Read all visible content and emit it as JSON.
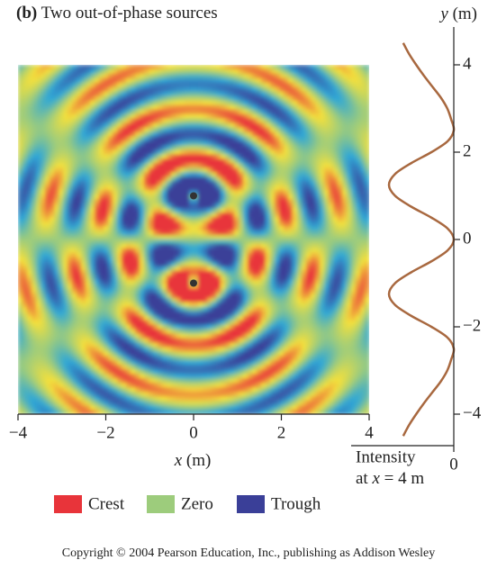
{
  "chart_data": {
    "type": "heatmap",
    "panel": "(b)",
    "title": "Two out-of-phase sources",
    "xlabel": [
      "x",
      "(m)"
    ],
    "ylabel": [
      "y",
      "(m)"
    ],
    "xlim": [
      -4,
      4
    ],
    "ylim": [
      -4,
      4
    ],
    "xticks": [
      {
        "value": -4,
        "label": "−4"
      },
      {
        "value": -2,
        "label": "−2"
      },
      0,
      2,
      4
    ],
    "yticks": [
      {
        "value": -4,
        "label": "−4"
      },
      {
        "value": -2,
        "label": "−2"
      },
      0,
      2,
      4
    ],
    "sources": [
      {
        "x": 0,
        "y": 1
      },
      {
        "x": 0,
        "y": -1
      }
    ],
    "out_of_phase": true,
    "wavelength": 1.15,
    "legend": [
      {
        "name": "Crest",
        "color": "#e8343a"
      },
      {
        "name": "Zero",
        "color": "#9dcc7c"
      },
      {
        "name": "Trough",
        "color": "#3a3f98"
      }
    ],
    "intensity": {
      "label": [
        "Intensity",
        "at",
        "x",
        "= 4 m"
      ],
      "color": "#a8683f",
      "xlim": [
        0,
        1
      ],
      "xticks": [
        0
      ],
      "y": [
        -4.5,
        -4.25,
        -4.0,
        -3.75,
        -3.5,
        -3.25,
        -3.0,
        -2.75,
        -2.5,
        -2.25,
        -2.0,
        -1.75,
        -1.5,
        -1.25,
        -1.0,
        -0.75,
        -0.5,
        -0.25,
        0,
        0.25,
        0.5,
        0.75,
        1.0,
        1.25,
        1.5,
        1.75,
        2.0,
        2.25,
        2.5,
        2.75,
        3.0,
        3.25,
        3.5,
        3.75,
        4.0,
        4.25,
        4.5
      ],
      "values": [
        0.78,
        0.69,
        0.58,
        0.46,
        0.33,
        0.2,
        0.1,
        0.04,
        0,
        0.095,
        0.345,
        0.655,
        0.905,
        1,
        0.905,
        0.655,
        0.345,
        0.095,
        0,
        0.095,
        0.345,
        0.655,
        0.905,
        1,
        0.905,
        0.655,
        0.345,
        0.095,
        0,
        0.04,
        0.1,
        0.2,
        0.33,
        0.46,
        0.58,
        0.69,
        0.78
      ]
    },
    "copyright": "Copyright © 2004 Pearson Education, Inc., publishing as Addison Wesley"
  }
}
